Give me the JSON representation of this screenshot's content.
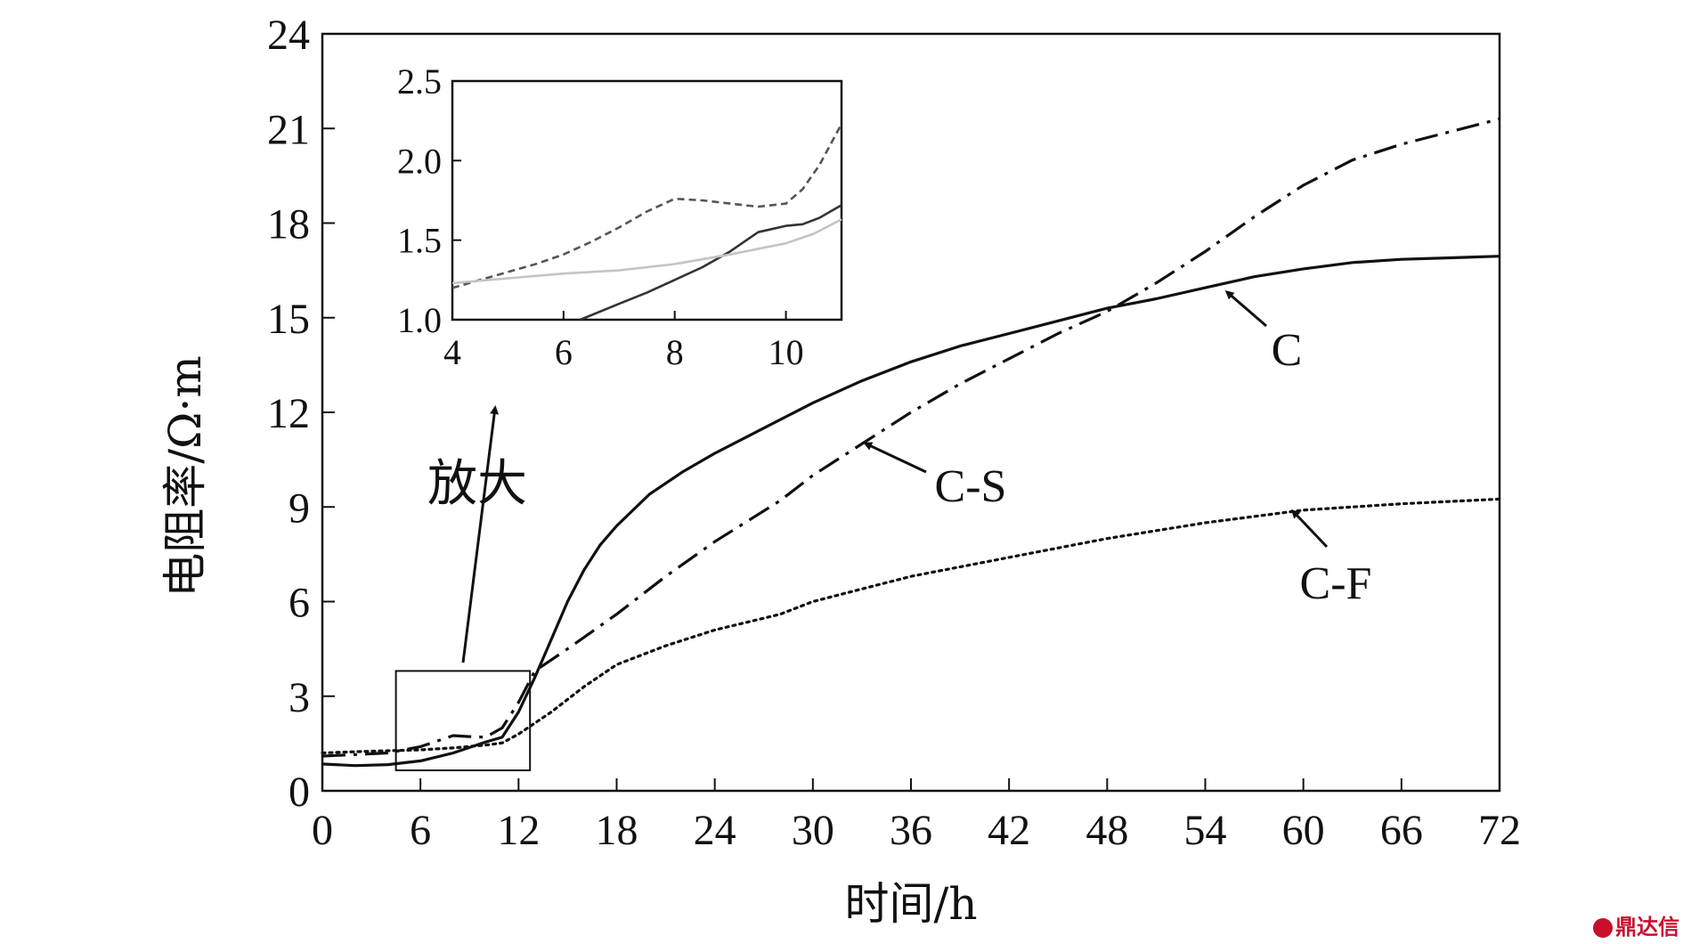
{
  "chart_data": [
    {
      "type": "line",
      "title": "",
      "xlabel": "时间/h",
      "ylabel": "电阻率/Ω·m",
      "xlim": [
        0,
        72
      ],
      "ylim": [
        0,
        24
      ],
      "xticks": [
        0,
        6,
        12,
        18,
        24,
        30,
        36,
        42,
        48,
        54,
        60,
        66,
        72
      ],
      "yticks": [
        0,
        3,
        6,
        9,
        12,
        15,
        18,
        21,
        24
      ],
      "grid": false,
      "legend": "none",
      "series": [
        {
          "name": "C",
          "style": "solid",
          "x": [
            0,
            2,
            4,
            6,
            8,
            10,
            11,
            12,
            13,
            14,
            15,
            16,
            17,
            18,
            20,
            22,
            24,
            27,
            30,
            33,
            36,
            39,
            42,
            45,
            48,
            51,
            54,
            57,
            60,
            63,
            66,
            69,
            72
          ],
          "y": [
            0.85,
            0.8,
            0.83,
            0.95,
            1.2,
            1.55,
            1.7,
            2.5,
            3.6,
            4.8,
            6.0,
            7.0,
            7.8,
            8.4,
            9.4,
            10.1,
            10.7,
            11.5,
            12.3,
            13.0,
            13.6,
            14.1,
            14.5,
            14.9,
            15.3,
            15.6,
            15.95,
            16.3,
            16.55,
            16.75,
            16.85,
            16.9,
            16.95
          ]
        },
        {
          "name": "C-S",
          "style": "dashdot",
          "x": [
            0,
            2,
            4,
            6,
            8,
            9,
            10,
            11,
            12,
            13,
            15,
            18,
            21,
            24,
            28,
            30,
            33,
            36,
            39,
            42,
            45,
            48,
            51,
            54,
            57,
            60,
            63,
            66,
            69,
            72
          ],
          "y": [
            1.1,
            1.15,
            1.2,
            1.4,
            1.75,
            1.72,
            1.7,
            2.0,
            2.8,
            3.8,
            4.5,
            5.6,
            6.8,
            7.9,
            9.2,
            10.0,
            11.0,
            12.0,
            12.9,
            13.7,
            14.5,
            15.2,
            16.1,
            17.1,
            18.2,
            19.2,
            20.0,
            20.5,
            20.9,
            21.3
          ]
        },
        {
          "name": "C-F",
          "style": "dotted",
          "x": [
            0,
            2,
            4,
            6,
            8,
            10,
            11,
            12,
            14,
            16,
            18,
            21,
            24,
            28,
            30,
            36,
            42,
            48,
            54,
            60,
            66,
            72
          ],
          "y": [
            1.2,
            1.24,
            1.27,
            1.3,
            1.36,
            1.45,
            1.52,
            1.8,
            2.5,
            3.3,
            4.0,
            4.6,
            5.1,
            5.6,
            6.0,
            6.8,
            7.4,
            8.0,
            8.5,
            8.9,
            9.1,
            9.25
          ]
        }
      ],
      "annotations": [
        {
          "text": "C",
          "target_series": "C"
        },
        {
          "text": "C-S",
          "target_series": "C-S"
        },
        {
          "text": "C-F",
          "target_series": "C-F"
        },
        {
          "text": "放大"
        }
      ],
      "zoom_region": {
        "xlim": [
          4.5,
          12.7
        ],
        "ylim": [
          0.65,
          3.8
        ]
      }
    },
    {
      "type": "line",
      "title": "",
      "inset": true,
      "xlim": [
        4,
        11
      ],
      "ylim": [
        1.0,
        2.5
      ],
      "xticks": [
        4,
        6,
        8,
        10
      ],
      "yticks": [
        1.0,
        1.5,
        2.0,
        2.5
      ],
      "series": [
        {
          "name": "C",
          "color": "#333333",
          "style": "solid",
          "x": [
            6.3,
            7,
            7.5,
            8,
            8.5,
            9,
            9.5,
            10,
            10.3,
            10.6,
            10.8,
            11
          ],
          "y": [
            1.0,
            1.1,
            1.17,
            1.25,
            1.33,
            1.43,
            1.55,
            1.59,
            1.6,
            1.64,
            1.68,
            1.72
          ]
        },
        {
          "name": "C-S",
          "color": "#555555",
          "style": "dashed",
          "x": [
            4,
            4.5,
            5,
            5.5,
            6,
            6.5,
            7,
            7.5,
            8,
            8.5,
            9,
            9.5,
            10,
            10.3,
            10.6,
            10.8,
            11
          ],
          "y": [
            1.2,
            1.25,
            1.3,
            1.35,
            1.41,
            1.49,
            1.58,
            1.68,
            1.76,
            1.75,
            1.73,
            1.71,
            1.73,
            1.82,
            1.97,
            2.1,
            2.23
          ]
        },
        {
          "name": "C-F",
          "color": "#c4c4c4",
          "style": "solid",
          "x": [
            4,
            5,
            6,
            7,
            8,
            9,
            10,
            10.5,
            11
          ],
          "y": [
            1.23,
            1.26,
            1.29,
            1.31,
            1.35,
            1.41,
            1.48,
            1.54,
            1.63
          ]
        }
      ]
    }
  ],
  "watermark": "鼎达信"
}
